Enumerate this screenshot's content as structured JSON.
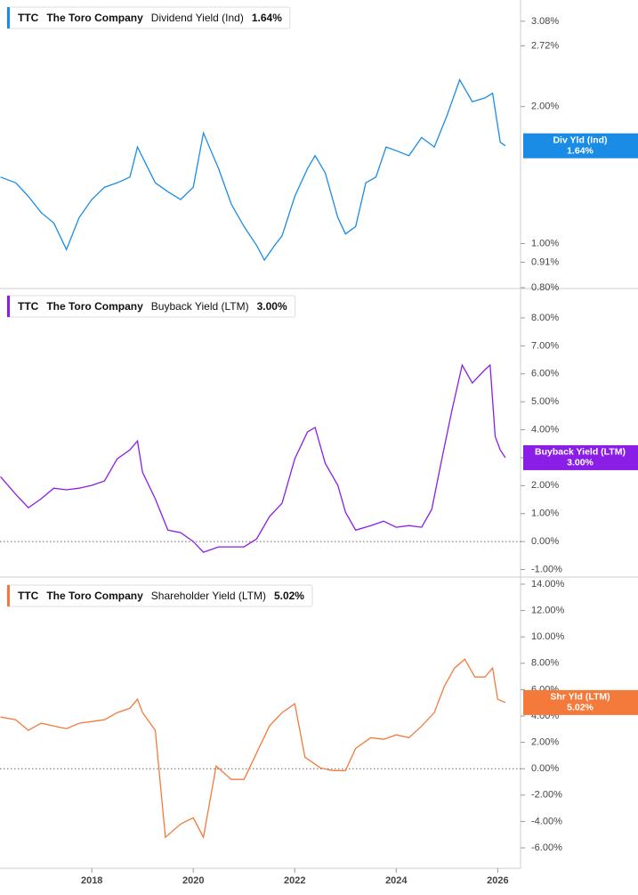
{
  "chart_data": [
    {
      "type": "line",
      "ticker": "TTC",
      "company": "The Toro Company",
      "log_scale": true,
      "series": [
        {
          "name": "Dividend Yield (Ind)",
          "color": "#1a8ce6",
          "value_label": "1.64%",
          "short_name": "Div Yld (Ind)",
          "values": [
            1.4,
            1.36,
            1.27,
            1.17,
            1.11,
            0.97,
            1.14,
            1.25,
            1.33,
            1.36,
            1.4,
            1.63,
            1.36,
            1.3,
            1.25,
            1.33,
            1.75,
            1.46,
            1.22,
            1.09,
            0.99,
            0.92,
            0.99,
            1.04,
            1.27,
            1.46,
            1.56,
            1.43,
            1.14,
            1.05,
            1.09,
            1.36,
            1.4,
            1.63,
            1.6,
            1.56,
            1.71,
            1.63,
            1.91,
            2.29,
            2.05,
            2.09,
            2.14,
            1.67,
            1.64
          ]
        }
      ],
      "x": [
        2016.2,
        2016.5,
        2016.75,
        2017.0,
        2017.25,
        2017.5,
        2017.75,
        2018.0,
        2018.25,
        2018.5,
        2018.75,
        2018.9,
        2019.25,
        2019.5,
        2019.75,
        2020.0,
        2020.2,
        2020.5,
        2020.75,
        2021.0,
        2021.25,
        2021.4,
        2021.6,
        2021.75,
        2022.0,
        2022.25,
        2022.4,
        2022.6,
        2022.85,
        2023.0,
        2023.2,
        2023.4,
        2023.6,
        2023.8,
        2024.0,
        2024.25,
        2024.5,
        2024.75,
        2025.0,
        2025.25,
        2025.5,
        2025.75,
        2025.9,
        2026.05,
        2026.15
      ],
      "xlim": [
        2016.19,
        2026.45
      ],
      "ylim": [
        0.8,
        3.43
      ],
      "yticks": [
        {
          "value": 3.08,
          "label": "3.08%"
        },
        {
          "value": 2.72,
          "label": "2.72%"
        },
        {
          "value": 2.0,
          "label": "2.00%"
        },
        {
          "value": 1.0,
          "label": "1.00%"
        },
        {
          "value": 0.91,
          "label": "0.91%"
        },
        {
          "value": 0.8,
          "label": "0.80%"
        }
      ]
    },
    {
      "type": "line",
      "ticker": "TTC",
      "company": "The Toro Company",
      "log_scale": false,
      "series": [
        {
          "name": "Buyback Yield (LTM)",
          "color": "#8a1ee6",
          "value_label": "3.00%",
          "short_name": "Buyback Yield (LTM)",
          "values": [
            2.32,
            1.69,
            1.21,
            1.53,
            1.91,
            1.85,
            1.91,
            2.01,
            2.17,
            2.96,
            3.28,
            3.6,
            2.48,
            1.53,
            0.41,
            0.32,
            0.0,
            -0.38,
            -0.19,
            -0.19,
            -0.19,
            0.1,
            0.89,
            1.37,
            2.96,
            3.92,
            4.08,
            2.8,
            2.01,
            1.05,
            0.41,
            0.57,
            0.73,
            0.51,
            0.57,
            0.51,
            1.15,
            2.96,
            4.71,
            6.31,
            5.67,
            6.15,
            6.31,
            3.76,
            3.28,
            3.0
          ]
        }
      ],
      "x": [
        2016.2,
        2016.5,
        2016.75,
        2017.0,
        2017.25,
        2017.5,
        2017.75,
        2018.0,
        2018.25,
        2018.5,
        2018.75,
        2018.9,
        2019.0,
        2019.25,
        2019.5,
        2019.75,
        2020.0,
        2020.2,
        2020.5,
        2020.75,
        2021.0,
        2021.25,
        2021.5,
        2021.75,
        2022.0,
        2022.25,
        2022.4,
        2022.6,
        2022.85,
        2023.0,
        2023.2,
        2023.5,
        2023.75,
        2024.0,
        2024.25,
        2024.5,
        2024.7,
        2024.9,
        2025.1,
        2025.3,
        2025.5,
        2025.75,
        2025.85,
        2025.95,
        2026.05,
        2026.15
      ],
      "xlim": [
        2016.19,
        2026.45
      ],
      "ylim": [
        -1.27,
        9.05
      ],
      "yticks": [
        {
          "value": 8,
          "label": "8.00%"
        },
        {
          "value": 7,
          "label": "7.00%"
        },
        {
          "value": 6,
          "label": "6.00%"
        },
        {
          "value": 5,
          "label": "5.00%"
        },
        {
          "value": 4,
          "label": "4.00%"
        },
        {
          "value": 3,
          "label": "3.00%"
        },
        {
          "value": 2,
          "label": "2.00%"
        },
        {
          "value": 1,
          "label": "1.00%"
        },
        {
          "value": 0,
          "label": "0.00%"
        },
        {
          "value": -1,
          "label": "-1.00%"
        }
      ]
    },
    {
      "type": "line",
      "ticker": "TTC",
      "company": "The Toro Company",
      "log_scale": false,
      "series": [
        {
          "name": "Shareholder Yield (LTM)",
          "color": "#f47a3c",
          "value_label": "5.02%",
          "short_name": "Shr Yld (LTM)",
          "values": [
            3.92,
            3.72,
            2.91,
            3.45,
            3.24,
            3.04,
            3.45,
            3.58,
            3.72,
            4.26,
            4.59,
            5.27,
            4.26,
            2.91,
            -5.2,
            -4.19,
            -3.72,
            -5.2,
            0.2,
            -0.81,
            -0.81,
            1.22,
            3.24,
            4.26,
            4.93,
            0.88,
            0.07,
            -0.14,
            -0.14,
            1.55,
            2.36,
            2.23,
            2.57,
            2.36,
            3.24,
            4.26,
            6.28,
            7.64,
            8.31,
            6.96,
            6.96,
            7.64,
            5.27,
            5.02
          ]
        }
      ],
      "x": [
        2016.2,
        2016.5,
        2016.75,
        2017.0,
        2017.25,
        2017.5,
        2017.75,
        2018.0,
        2018.25,
        2018.5,
        2018.75,
        2018.9,
        2019.0,
        2019.25,
        2019.45,
        2019.75,
        2020.0,
        2020.2,
        2020.45,
        2020.75,
        2021.0,
        2021.25,
        2021.5,
        2021.75,
        2022.0,
        2022.2,
        2022.5,
        2022.75,
        2023.0,
        2023.2,
        2023.5,
        2023.75,
        2024.0,
        2024.25,
        2024.5,
        2024.75,
        2024.95,
        2025.15,
        2025.35,
        2025.55,
        2025.75,
        2025.9,
        2026.0,
        2026.15
      ],
      "xlim": [
        2016.19,
        2026.45
      ],
      "ylim": [
        -7.55,
        14.47
      ],
      "yticks": [
        {
          "value": 14,
          "label": "14.00%"
        },
        {
          "value": 12,
          "label": "12.00%"
        },
        {
          "value": 10,
          "label": "10.00%"
        },
        {
          "value": 8,
          "label": "8.00%"
        },
        {
          "value": 6,
          "label": "6.00%"
        },
        {
          "value": 4,
          "label": "4.00%"
        },
        {
          "value": 2,
          "label": "2.00%"
        },
        {
          "value": 0,
          "label": "0.00%"
        },
        {
          "value": -2,
          "label": "-2.00%"
        },
        {
          "value": -4,
          "label": "-4.00%"
        },
        {
          "value": -6,
          "label": "-6.00%"
        }
      ],
      "xticks": [
        2018,
        2020,
        2022,
        2024,
        2026
      ]
    }
  ]
}
